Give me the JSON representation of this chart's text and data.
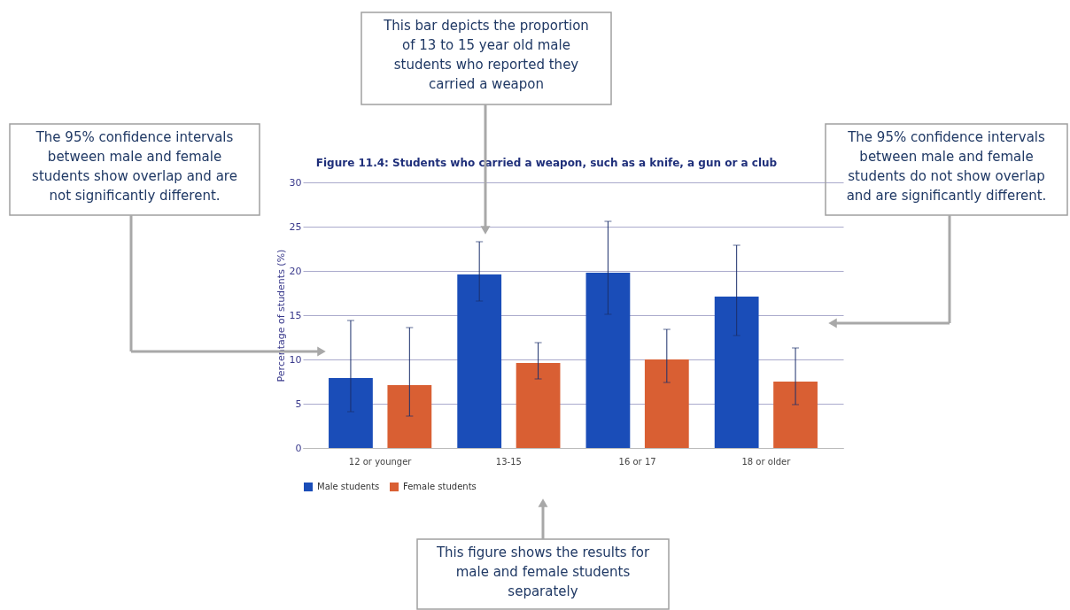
{
  "chart_data": {
    "type": "bar",
    "title": "Figure 11.4: Students who carried a weapon, such as a knife, a gun or a club",
    "ylabel": "Percentage of students (%)",
    "categories": [
      "12 or younger",
      "13-15",
      "16 or 17",
      "18 or older"
    ],
    "series": [
      {
        "name": "Male students",
        "color": "#1a4db8",
        "values": [
          7.9,
          19.6,
          19.8,
          17.1
        ],
        "errors": [
          [
            4.1,
            14.4
          ],
          [
            16.6,
            23.3
          ],
          [
            15.1,
            25.6
          ],
          [
            12.7,
            22.9
          ]
        ]
      },
      {
        "name": "Female students",
        "color": "#d95f33",
        "values": [
          7.1,
          9.6,
          10.0,
          7.5
        ],
        "errors": [
          [
            3.6,
            13.6
          ],
          [
            7.8,
            11.9
          ],
          [
            7.4,
            13.4
          ],
          [
            4.9,
            11.3
          ]
        ]
      }
    ],
    "ylim": [
      0,
      30
    ],
    "yticks": [
      0,
      5,
      10,
      15,
      20,
      25,
      30
    ],
    "grid": "y",
    "legend": "bottom",
    "annotations": [
      "This bar depicts the proportion\nof 13 to 15 year old male\nstudents who reported they\ncarried a weapon",
      "The 95% confidence intervals\nbetween male and female\nstudents show overlap and are\nnot significantly different.",
      "The 95% confidence intervals\nbetween male and female\nstudents do not show overlap\nand are significantly different.",
      "This figure shows the results for\nmale and female students\nseparately"
    ]
  }
}
